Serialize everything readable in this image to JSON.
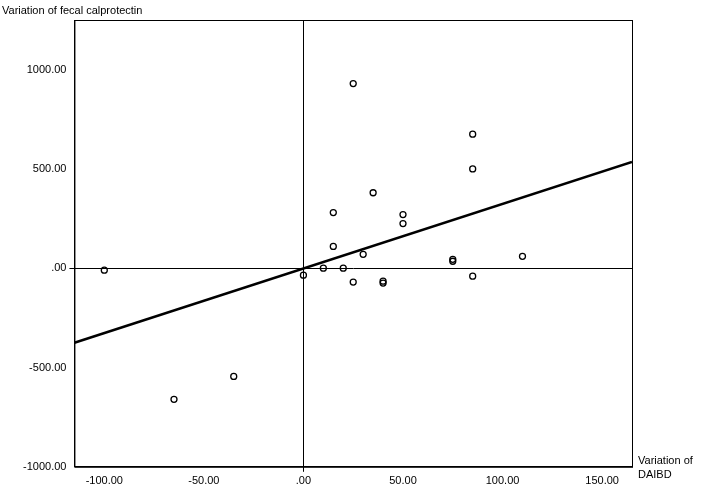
{
  "chart_data": {
    "type": "scatter",
    "x_label": "Variation of DAIBD",
    "y_label": "Variation of fecal calprotectin",
    "xlim": [
      -115,
      165
    ],
    "ylim": [
      -1000,
      1250
    ],
    "xticks": [
      {
        "value": -100,
        "label": "-100.00"
      },
      {
        "value": -50,
        "label": "-50.00"
      },
      {
        "value": 0,
        "label": ".00"
      },
      {
        "value": 50,
        "label": "50.00"
      },
      {
        "value": 100,
        "label": "100.00"
      },
      {
        "value": 150,
        "label": "150.00"
      }
    ],
    "yticks": [
      {
        "value": -1000,
        "label": "-1000.00"
      },
      {
        "value": -500,
        "label": "-500.00"
      },
      {
        "value": 0,
        "label": ".00"
      },
      {
        "value": 500,
        "label": "500.00"
      },
      {
        "value": 1000,
        "label": "1000.00"
      }
    ],
    "grid": false,
    "series": [
      {
        "type": "scatter",
        "color": "#000000",
        "marker": "open_circle",
        "x": [
          -100,
          -65,
          -35,
          0,
          10,
          15,
          15,
          20,
          25,
          25,
          30,
          35,
          40,
          40,
          50,
          50,
          75,
          75,
          85,
          85,
          85,
          110
        ],
        "values": [
          -10,
          -660,
          -545,
          -35,
          0,
          280,
          110,
          0,
          930,
          -70,
          70,
          380,
          -65,
          -75,
          270,
          225,
          45,
          35,
          675,
          500,
          -40,
          60
        ]
      },
      {
        "type": "line",
        "color": "#000000",
        "line_style": "solid",
        "x": [
          -115,
          165
        ],
        "values": [
          -375,
          535
        ]
      }
    ]
  }
}
